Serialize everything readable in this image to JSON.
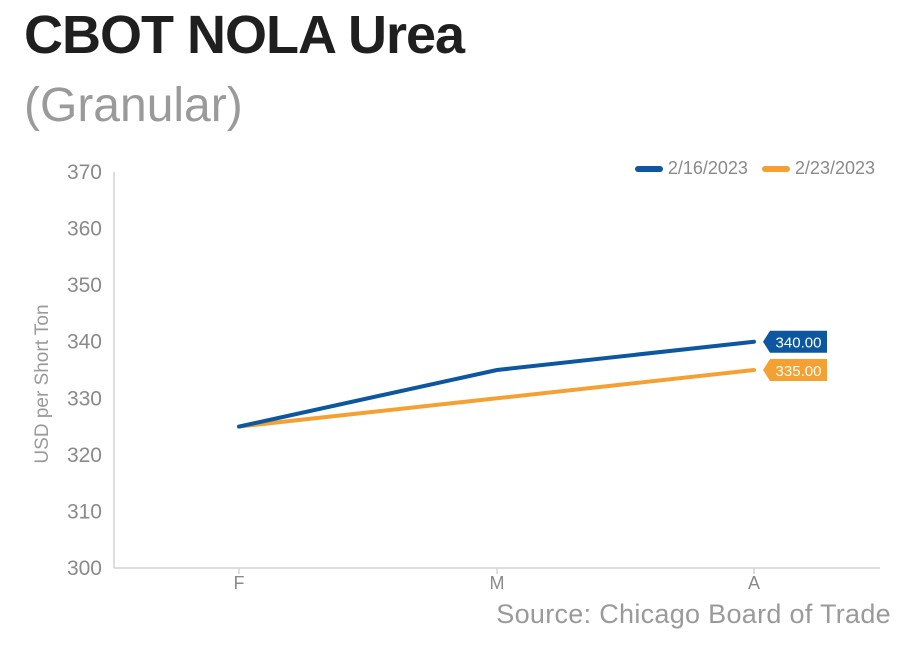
{
  "chart_data": {
    "type": "line",
    "title": "CBOT NOLA Urea",
    "subtitle": "(Granular)",
    "source": "Source: Chicago Board of Trade",
    "xlabel": "",
    "ylabel": "USD per Short Ton",
    "categories": [
      "F",
      "M",
      "A"
    ],
    "ylim": [
      300,
      370
    ],
    "yticks": [
      "300",
      "310",
      "320",
      "330",
      "340",
      "350",
      "360",
      "370"
    ],
    "grid": false,
    "legend_position": "top-right",
    "series": [
      {
        "name": "2/16/2023",
        "color": "#0d57a0",
        "values": [
          325,
          335,
          340
        ],
        "end_label": "340.00"
      },
      {
        "name": "2/23/2023",
        "color": "#f5a033",
        "values": [
          325,
          330,
          335
        ],
        "end_label": "335.00"
      }
    ]
  }
}
